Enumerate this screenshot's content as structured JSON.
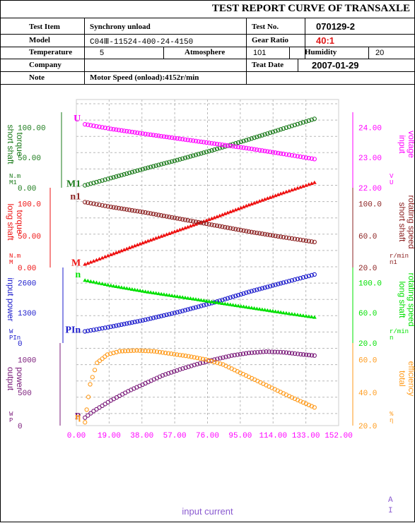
{
  "header": {
    "title": "TEST REPORT CURVE OF TRANSAXLE",
    "rows": {
      "test_item_label": "Test Item",
      "test_item_value": "Synchrony unload",
      "test_no_label": "Test No.",
      "test_no_value": "070129-2",
      "model_label": "Model",
      "model_value": "C04Ⅲ-11524-400-24-4150",
      "gear_ratio_label": "Gear Ratio",
      "gear_ratio_value": "40:1",
      "temperature_label": "Temperature",
      "temperature_value": "5",
      "atmosphere_label": "Atmosphere",
      "atmosphere_value": "101",
      "humidity_label": "Humidity",
      "humidity_value": "20",
      "company_label": "Company",
      "company_value": "",
      "test_date_label": "Teat Date",
      "test_date_value": "2007-01-29",
      "note_label": "Note",
      "note_value": "Motor Speed (onload):4152r/min"
    }
  },
  "colors": {
    "grid": "#b8b8b8",
    "green_dark": "#1a7a1a",
    "magenta": "#ff00ff",
    "red": "#ee1111",
    "brown": "#8b2020",
    "blue": "#1a1acc",
    "lime": "#00e000",
    "purple": "#7a1a7a",
    "orange": "#ff9a1a"
  },
  "chart_data": {
    "type": "line",
    "x": {
      "label": "input current",
      "unit_symbol": "A",
      "unit_name": "I",
      "ticks": [
        "0.00",
        "19.00",
        "38.00",
        "57.00",
        "76.00",
        "95.00",
        "114.00",
        "133.00",
        "152.00"
      ],
      "range": [
        0,
        152
      ]
    },
    "panels": [
      {
        "left_axis": {
          "label": "short shaft torque",
          "unit": "N.m",
          "symbol": "M1",
          "ticks": [
            "0.00",
            "50.00",
            "100.00"
          ],
          "range": [
            0,
            125
          ]
        },
        "right_axis": {
          "label": "input voltage",
          "unit": "V",
          "symbol": "U",
          "ticks": [
            "22.00",
            "23.00",
            "24.00"
          ],
          "range": [
            22,
            24.5
          ]
        },
        "series": [
          {
            "name": "M1",
            "axis": "left",
            "color_key": "green_dark",
            "marker": "circle",
            "x": [
              5,
              20,
              40,
              60,
              80,
              100,
              120,
              138
            ],
            "y": [
              4,
              16,
              32,
              47,
              63,
              80,
              98,
              114
            ]
          },
          {
            "name": "U",
            "axis": "right",
            "color_key": "magenta",
            "marker": "circle",
            "x": [
              5,
              20,
              40,
              60,
              80,
              100,
              120,
              138
            ],
            "y": [
              24.1,
              23.95,
              23.78,
              23.62,
              23.46,
              23.3,
              23.12,
              22.95
            ]
          }
        ]
      },
      {
        "left_axis": {
          "label": "long shaft torque",
          "unit": "N.m",
          "symbol": "M",
          "ticks": [
            "0.00",
            "50.00",
            "100.0"
          ],
          "range": [
            0,
            125
          ]
        },
        "right_axis": {
          "label": "short shaft rotating speed",
          "unit": "r/min",
          "symbol": "n1",
          "ticks": [
            "20.0",
            "60.0",
            "100.0"
          ],
          "range": [
            20,
            120
          ]
        },
        "series": [
          {
            "name": "M",
            "axis": "left",
            "color_key": "red",
            "marker": "triangle",
            "x": [
              5,
              20,
              40,
              60,
              80,
              100,
              120,
              138
            ],
            "y": [
              5,
              20,
              40,
              59,
              78,
              98,
              117,
              133
            ]
          },
          {
            "name": "n1",
            "axis": "right",
            "color_key": "brown",
            "marker": "circle",
            "x": [
              5,
              20,
              40,
              60,
              80,
              100,
              120,
              138
            ],
            "y": [
              102,
              96,
              89,
              81,
              73,
              65,
              58,
              52
            ]
          }
        ]
      },
      {
        "left_axis": {
          "label": "input power",
          "unit": "W",
          "symbol": "PIn",
          "ticks": [
            "0",
            "1300",
            "2600"
          ],
          "range": [
            0,
            3250
          ]
        },
        "right_axis": {
          "label": "long shaft rotating speed",
          "unit": "r/min",
          "symbol": "n",
          "ticks": [
            "20.0",
            "60.0",
            "100.0"
          ],
          "range": [
            20,
            120
          ]
        },
        "series": [
          {
            "name": "PIn",
            "axis": "left",
            "color_key": "blue",
            "marker": "circle",
            "x": [
              5,
              20,
              40,
              60,
              80,
              100,
              120,
              138
            ],
            "y": [
              500,
              700,
              1000,
              1350,
              1750,
              2200,
              2600,
              2950
            ]
          },
          {
            "name": "n",
            "axis": "right",
            "color_key": "lime",
            "marker": "triangle",
            "x": [
              5,
              20,
              40,
              60,
              80,
              100,
              120,
              138
            ],
            "y": [
              103,
              96,
              88,
              81,
              74,
              67,
              60,
              54
            ]
          }
        ]
      },
      {
        "left_axis": {
          "label": "output power",
          "unit": "W",
          "symbol": "P",
          "ticks": [
            "0",
            "500",
            "1000"
          ],
          "range": [
            0,
            1250
          ]
        },
        "right_axis": {
          "label": "total efficiency",
          "unit": "%",
          "symbol": "η",
          "ticks": [
            "20.0",
            "40.0",
            "60.0"
          ],
          "range": [
            20,
            70
          ]
        },
        "series": [
          {
            "name": "P",
            "axis": "left",
            "color_key": "purple",
            "marker": "circle",
            "x": [
              5,
              10,
              20,
              30,
              40,
              50,
              60,
              70,
              80,
              90,
              100,
              110,
              120,
              130,
              138
            ],
            "y": [
              120,
              220,
              380,
              520,
              640,
              760,
              850,
              930,
              1000,
              1060,
              1100,
              1120,
              1110,
              1080,
              1060
            ]
          },
          {
            "name": "η",
            "axis": "right",
            "color_key": "orange",
            "marker": "circle",
            "x": [
              5,
              8,
              12,
              18,
              25,
              35,
              45,
              55,
              65,
              75,
              85,
              95,
              105,
              115,
              125,
              138
            ],
            "y": [
              22,
              45,
              58,
              63,
              65,
              65.5,
              65,
              63.5,
              62,
              60,
              57,
              52,
              47,
              42,
              37,
              31
            ]
          }
        ]
      }
    ]
  }
}
